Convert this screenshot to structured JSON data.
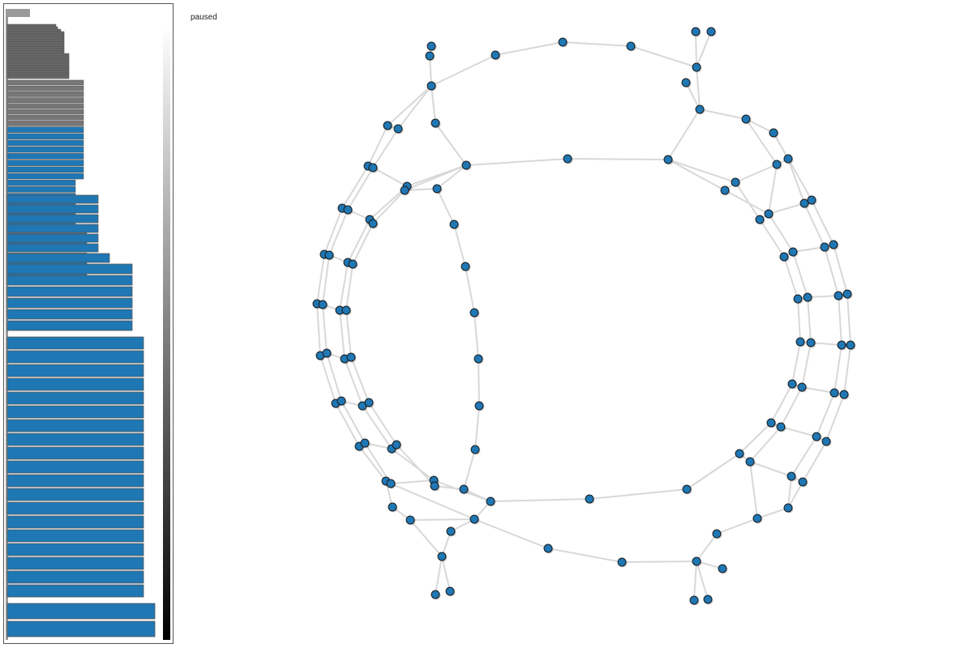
{
  "status_text": "paused",
  "colors": {
    "node_fill": "#1f77b4",
    "node_stroke": "#1a1a1a",
    "edge": "#d8d8d8",
    "bar_blue": "#1f77b4",
    "bar_gray": "#666666",
    "panel_border": "#555555"
  },
  "bars": {
    "count_gray": 22,
    "count_blue": 53
  }
}
